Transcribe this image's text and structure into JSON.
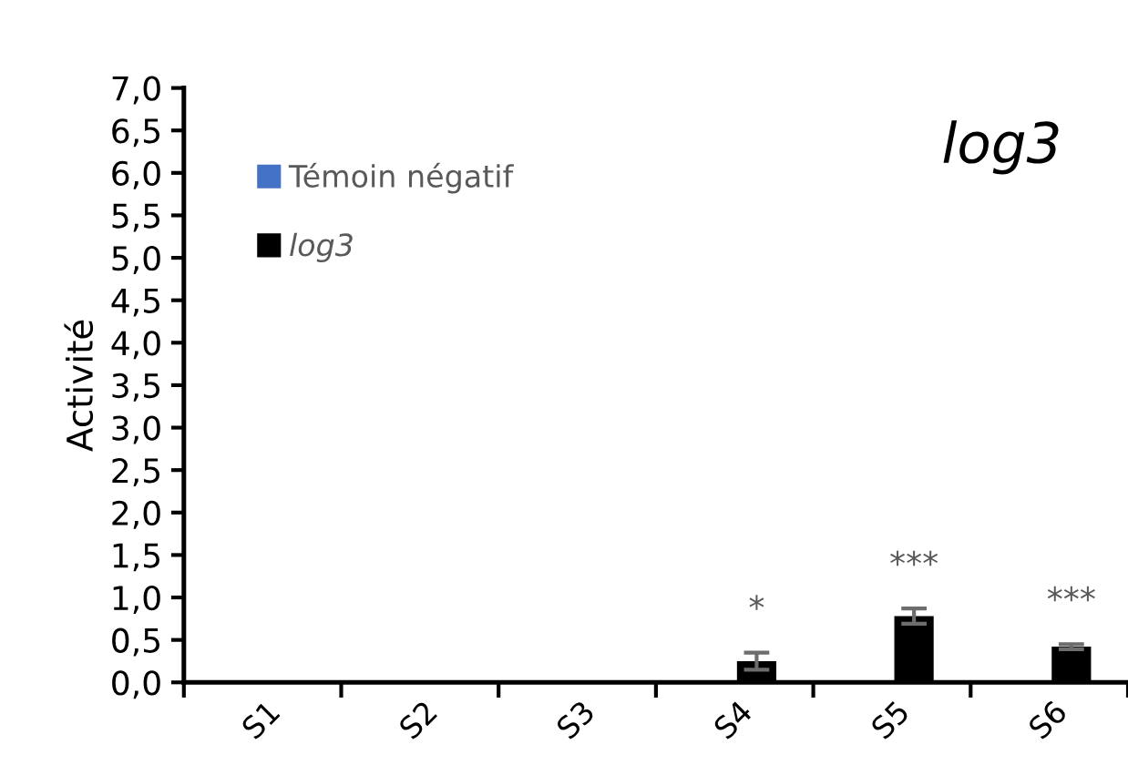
{
  "chart_data": {
    "type": "bar",
    "title": "log3",
    "ylabel": "Activité",
    "categories": [
      "S1",
      "S2",
      "S3",
      "S4",
      "S5",
      "S6"
    ],
    "series": [
      {
        "name": "Témoin négatif",
        "color": "#4472c4",
        "values": [
          0,
          0,
          0,
          0,
          0,
          0
        ]
      },
      {
        "name": "log3",
        "color": "#000000",
        "values": [
          0,
          0,
          0,
          0.25,
          0.78,
          0.42
        ],
        "errors": [
          null,
          null,
          null,
          0.1,
          0.09,
          0.03
        ]
      }
    ],
    "ylim": [
      0,
      7
    ],
    "yticks": [
      {
        "value": 0,
        "label": "0,0"
      },
      {
        "value": 0.5,
        "label": "0,5"
      },
      {
        "value": 1,
        "label": "1,0"
      },
      {
        "value": 1.5,
        "label": "1,5"
      },
      {
        "value": 2,
        "label": "2,0"
      },
      {
        "value": 2.5,
        "label": "2,5"
      },
      {
        "value": 3,
        "label": "3,0"
      },
      {
        "value": 3.5,
        "label": "3,5"
      },
      {
        "value": 4,
        "label": "4,0"
      },
      {
        "value": 4.5,
        "label": "4,5"
      },
      {
        "value": 5,
        "label": "5,0"
      },
      {
        "value": 5.5,
        "label": "5,5"
      },
      {
        "value": 6,
        "label": "6,0"
      },
      {
        "value": 6.5,
        "label": "6,5"
      },
      {
        "value": 7,
        "label": "7,0"
      }
    ],
    "annotations": [
      "*",
      "***",
      "***"
    ],
    "grid": false,
    "legend": "top left"
  }
}
